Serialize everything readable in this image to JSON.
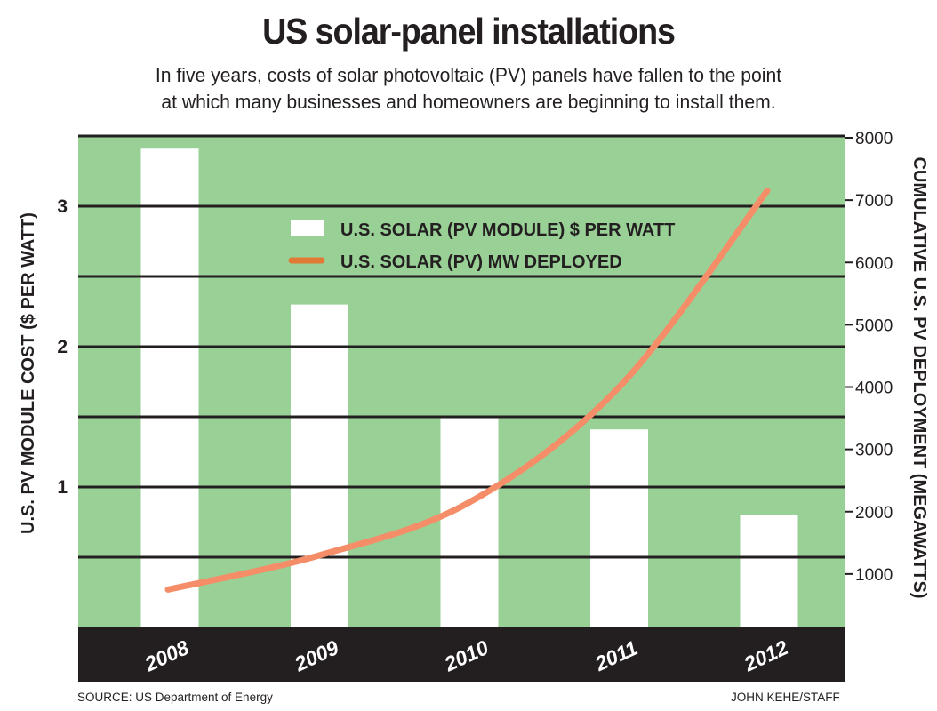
{
  "header": {
    "title": "US solar-panel installations",
    "subtitle_line1": "In five years, costs of solar photovoltaic (PV) panels have fallen to the point",
    "subtitle_line2": "at which many businesses and homeowners are beginning to install them."
  },
  "footer": {
    "source": "SOURCE: US Department of Energy",
    "credit": "JOHN KEHE/STAFF"
  },
  "colors": {
    "plot_background": "#99d096",
    "bars": "#ffffff",
    "line": "#f58e68",
    "legend_line": "#e07a35",
    "gridline": "#231f20",
    "axis_band": "#231f20",
    "text": "#231f20"
  },
  "chart_data": {
    "type": "bar",
    "title": "US solar-panel installations",
    "categories": [
      "2008",
      "2009",
      "2010",
      "2011",
      "2012"
    ],
    "series": [
      {
        "name": "U.S. SOLAR (PV MODULE) $ PER WATT",
        "type": "bar",
        "axis": "left",
        "values": [
          3.41,
          2.3,
          1.49,
          1.41,
          0.8
        ]
      },
      {
        "name": "U.S. SOLAR (PV) MW DEPLOYED",
        "type": "line",
        "axis": "right",
        "values": [
          750,
          1300,
          2150,
          4000,
          7150
        ]
      }
    ],
    "xlabel": "",
    "ylabel_left": "U.S. PV MODULE COST ($ PER WATT)",
    "ylabel_right": "CUMULATIVE U.S. PV DEPLOYMENT (MEGAWATTS)",
    "ylim_left": [
      0,
      3.5
    ],
    "ylim_right": [
      0,
      8000
    ],
    "yticks_left": [
      "1",
      "2",
      "3"
    ],
    "yticks_left_values": [
      1,
      2,
      3
    ],
    "yticks_right": [
      "1000",
      "2000",
      "3000",
      "4000",
      "5000",
      "6000",
      "7000",
      "8000"
    ],
    "yticks_right_values": [
      1000,
      2000,
      3000,
      4000,
      5000,
      6000,
      7000,
      8000
    ],
    "gridlines_left_values": [
      0.5,
      1,
      1.5,
      2,
      2.5,
      3,
      3.5
    ],
    "grid": true,
    "legend_position": "top-center"
  }
}
